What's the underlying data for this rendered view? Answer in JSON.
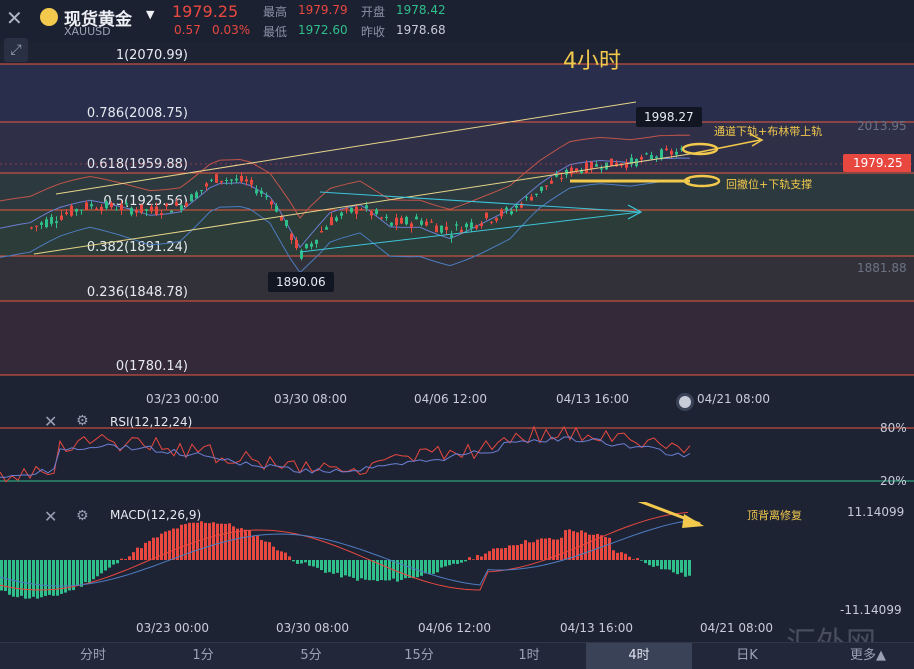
{
  "header": {
    "title": "现货黄金",
    "symbol": "XAUUSD",
    "price": "1979.25",
    "change": "0.57",
    "change_pct": "0.03%",
    "high_label": "最高",
    "high_value": "1979.79",
    "low_label": "最低",
    "low_value": "1972.60",
    "open_label": "开盘",
    "open_value": "1978.42",
    "prev_close_label": "昨收",
    "prev_close_value": "1978.68"
  },
  "chart": {
    "timeframe_label": "4小时",
    "current_price_tag": "1979.25",
    "right_axis_top": "2013.95",
    "right_axis_mid": "1881.88",
    "high_callout": "1998.27",
    "low_callout": "1890.06",
    "annotation_upper": "通道下轨+布林带上轨",
    "annotation_lower": "回撤位+下轨支撑",
    "annotation_macd": "顶背离修复",
    "watermark": "汇外网"
  },
  "chart_data": {
    "type": "candlestick",
    "fib_levels": [
      {
        "label": "1(2070.99)",
        "value": 2070.99
      },
      {
        "label": "0.786(2008.75)",
        "value": 2008.75
      },
      {
        "label": "0.618(1959.88)",
        "value": 1959.88
      },
      {
        "label": "0.5(1925.56)",
        "value": 1925.56
      },
      {
        "label": "0.382(1891.24)",
        "value": 1891.24
      },
      {
        "label": "0.236(1848.78)",
        "value": 1848.78
      },
      {
        "label": "0(1780.14)",
        "value": 1780.14
      }
    ],
    "x_ticks": [
      "03/23 00:00",
      "03/30 08:00",
      "04/06 12:00",
      "04/13 16:00",
      "04/21 08:00"
    ],
    "rsi": {
      "label": "RSI(12,12,24)",
      "levels": [
        "80%",
        "20%"
      ]
    },
    "macd": {
      "label": "MACD(12,26,9)",
      "max": "11.14099",
      "min": "-11.14099"
    }
  },
  "tabs": [
    "分时",
    "1分",
    "5分",
    "15分",
    "1时",
    "4时",
    "日K",
    "更多▲"
  ],
  "active_tab": "4时",
  "colors": {
    "up": "#e8483f",
    "down": "#2fbf8a",
    "accent": "#f2c94c",
    "fib": "#e8593f"
  }
}
